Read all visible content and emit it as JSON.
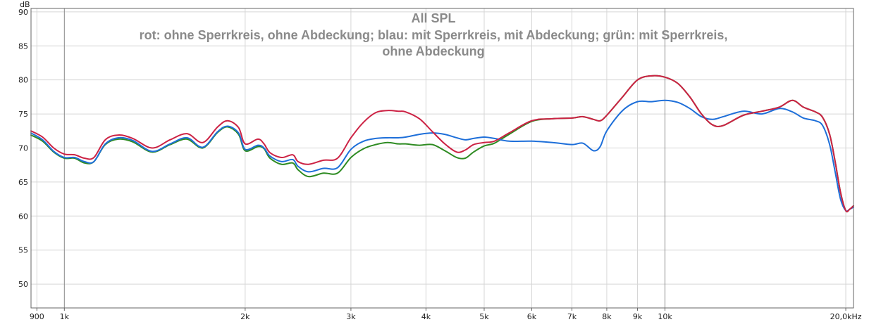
{
  "chart_data": {
    "type": "line",
    "title": "All SPL",
    "subtitle_lines": [
      "rot: ohne Sperrkreis, ohne Abdeckung; blau: mit Sperrkreis, mit Abdeckung; grün: mit Sperrkreis,",
      "ohne Abdeckung"
    ],
    "y_unit": "dB",
    "x_scale": "log",
    "xlim": [
      880,
      20600
    ],
    "ylim": [
      46.5,
      90.5
    ],
    "grid": true,
    "y_ticks": [
      50,
      55,
      60,
      65,
      70,
      75,
      80,
      85,
      90
    ],
    "x_ticks": [
      {
        "value": 900,
        "label": "900"
      },
      {
        "value": 1000,
        "label": "1k"
      },
      {
        "value": 2000,
        "label": "2k"
      },
      {
        "value": 3000,
        "label": "3k"
      },
      {
        "value": 4000,
        "label": "4k"
      },
      {
        "value": 5000,
        "label": "5k"
      },
      {
        "value": 6000,
        "label": "6k"
      },
      {
        "value": 7000,
        "label": "7k"
      },
      {
        "value": 8000,
        "label": "8k"
      },
      {
        "value": 9000,
        "label": "9k"
      },
      {
        "value": 10000,
        "label": "10k"
      },
      {
        "value": 20000,
        "label": "20,0kHz"
      }
    ],
    "series": [
      {
        "color": "#cc2244",
        "x": [
          880,
          920,
          960,
          1000,
          1040,
          1080,
          1120,
          1170,
          1230,
          1300,
          1400,
          1500,
          1600,
          1700,
          1800,
          1870,
          1950,
          2000,
          2100,
          2150,
          2200,
          2300,
          2400,
          2450,
          2550,
          2700,
          2850,
          3000,
          3150,
          3300,
          3450,
          3600,
          3700,
          3900,
          4100,
          4300,
          4500,
          4650,
          4800,
          5000,
          5200,
          5500,
          6000,
          6500,
          7000,
          7300,
          7600,
          7800,
          8000,
          8500,
          9000,
          9500,
          10000,
          10500,
          11000,
          11500,
          12000,
          12500,
          13500,
          14500,
          15500,
          16300,
          17000,
          17800,
          18300,
          18800,
          19200,
          19600,
          20000,
          20300,
          20600
        ],
        "values": [
          72.5,
          71.6,
          70.0,
          69.1,
          69.0,
          68.5,
          68.6,
          71.2,
          71.9,
          71.4,
          70.0,
          71.2,
          72.1,
          70.8,
          73.1,
          74.0,
          73.0,
          70.6,
          71.3,
          70.6,
          69.3,
          68.6,
          69.0,
          68.0,
          67.6,
          68.2,
          68.5,
          71.5,
          73.8,
          75.2,
          75.5,
          75.4,
          75.3,
          74.3,
          72.4,
          70.6,
          69.4,
          69.7,
          70.5,
          70.8,
          71.0,
          72.2,
          74.0,
          74.3,
          74.4,
          74.6,
          74.2,
          74.0,
          74.8,
          77.5,
          80.0,
          80.6,
          80.4,
          79.5,
          77.5,
          75.0,
          73.4,
          73.3,
          74.8,
          75.4,
          76.0,
          77.0,
          76.0,
          75.3,
          74.5,
          72.0,
          68.0,
          63.5,
          60.8,
          61.0,
          61.5
        ]
      },
      {
        "color": "#1e6fd9",
        "x": [
          880,
          920,
          960,
          1000,
          1040,
          1080,
          1120,
          1170,
          1230,
          1300,
          1400,
          1500,
          1600,
          1700,
          1800,
          1870,
          1950,
          2000,
          2100,
          2150,
          2200,
          2300,
          2400,
          2450,
          2550,
          2700,
          2850,
          3000,
          3150,
          3300,
          3450,
          3600,
          3700,
          3900,
          4100,
          4300,
          4500,
          4650,
          4800,
          5000,
          5200,
          5500,
          6000,
          6500,
          7000,
          7300,
          7600,
          7800,
          8000,
          8500,
          9000,
          9500,
          10000,
          10500,
          11000,
          11500,
          12000,
          12500,
          13500,
          14500,
          15500,
          16300,
          17000,
          17800,
          18300,
          18800,
          19200,
          19600,
          20000,
          20300,
          20600
        ],
        "values": [
          72.2,
          71.2,
          69.5,
          68.6,
          68.6,
          68.0,
          68.0,
          70.6,
          71.5,
          71.1,
          69.5,
          70.6,
          71.5,
          70.1,
          72.4,
          73.2,
          72.2,
          69.8,
          70.4,
          70.0,
          68.8,
          68.0,
          68.3,
          67.3,
          66.5,
          67.0,
          67.1,
          69.8,
          71.0,
          71.4,
          71.5,
          71.5,
          71.6,
          72.0,
          72.2,
          72.0,
          71.5,
          71.2,
          71.4,
          71.6,
          71.4,
          71.0,
          71.0,
          70.8,
          70.5,
          70.7,
          69.6,
          70.2,
          72.5,
          75.5,
          76.8,
          76.8,
          77.0,
          76.7,
          75.8,
          74.6,
          74.2,
          74.6,
          75.4,
          75.0,
          75.8,
          75.3,
          74.4,
          74.0,
          73.3,
          70.5,
          66.5,
          62.5,
          60.8,
          61.0,
          61.3
        ]
      },
      {
        "color": "#2e8b22",
        "x": [
          880,
          920,
          960,
          1000,
          1040,
          1080,
          1120,
          1170,
          1230,
          1300,
          1400,
          1500,
          1600,
          1700,
          1800,
          1870,
          1950,
          2000,
          2100,
          2150,
          2200,
          2300,
          2400,
          2450,
          2550,
          2700,
          2850,
          3000,
          3150,
          3300,
          3450,
          3600,
          3700,
          3900,
          4100,
          4300,
          4500,
          4650,
          4800,
          5000,
          5200,
          5500,
          6000,
          6500,
          7000,
          7300,
          7600,
          7800,
          8000,
          8500,
          9000,
          9500,
          10000,
          10500,
          11000,
          11500,
          12000,
          12500,
          13500,
          14500,
          15500,
          16300,
          17000,
          17800,
          18300,
          18800,
          19200,
          19600,
          20000,
          20300,
          20600
        ],
        "values": [
          71.9,
          71.0,
          69.4,
          68.5,
          68.5,
          67.8,
          68.0,
          70.5,
          71.3,
          70.9,
          69.4,
          70.5,
          71.3,
          70.0,
          72.3,
          73.1,
          72.0,
          69.6,
          70.2,
          69.9,
          68.5,
          67.6,
          67.8,
          66.8,
          65.8,
          66.3,
          66.3,
          68.6,
          69.9,
          70.5,
          70.8,
          70.6,
          70.6,
          70.4,
          70.5,
          69.6,
          68.6,
          68.5,
          69.4,
          70.3,
          70.7,
          72.0,
          73.9,
          74.3,
          74.4,
          74.6,
          74.2,
          74.0,
          74.8,
          77.5,
          80.0,
          80.6,
          80.4,
          79.5,
          77.5,
          75.0,
          73.4,
          73.3,
          74.8,
          75.4,
          76.0,
          77.0,
          76.0,
          75.3,
          74.5,
          72.0,
          68.0,
          63.5,
          60.8,
          61.0,
          61.5
        ]
      }
    ]
  }
}
